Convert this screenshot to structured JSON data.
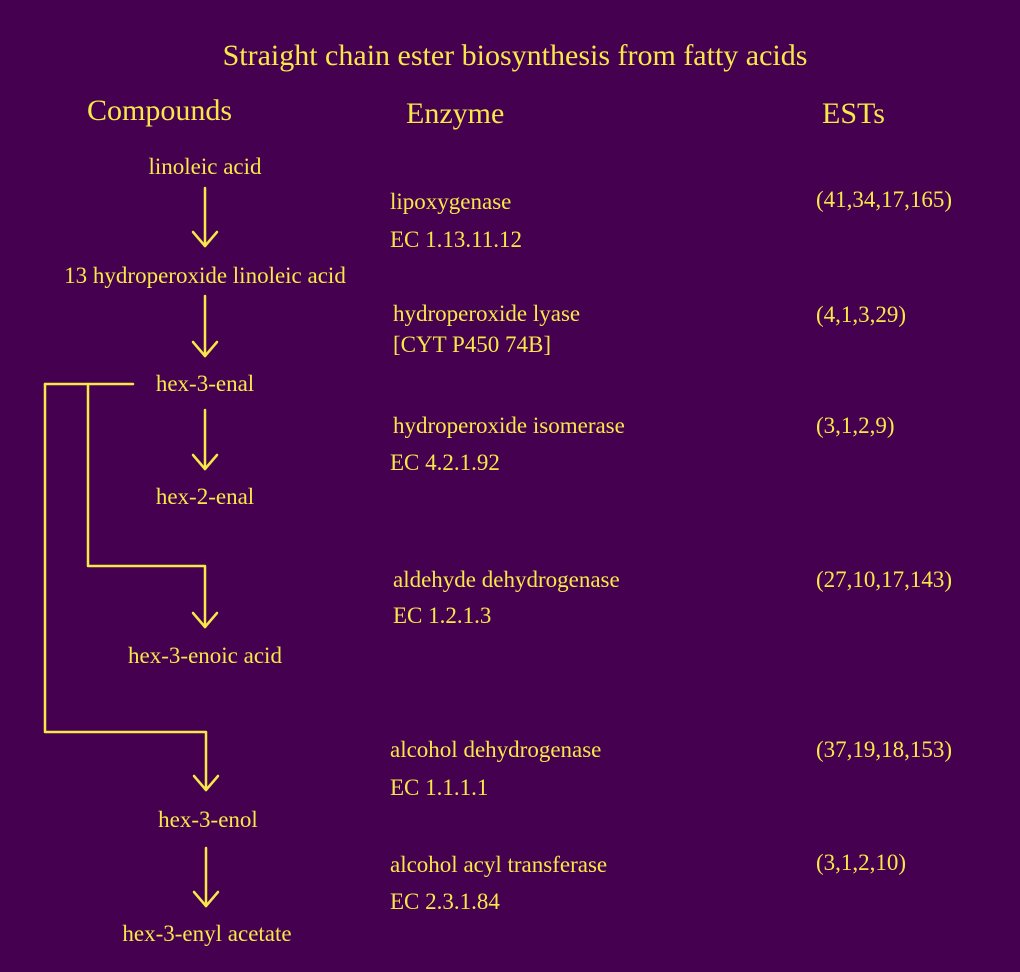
{
  "title": "Straight chain ester biosynthesis from fatty acids",
  "headers": {
    "compounds": "Compounds",
    "enzyme": "Enzyme",
    "ests": "ESTs"
  },
  "compounds": [
    "linoleic acid",
    "13 hydroperoxide linoleic acid",
    "hex-3-enal",
    "hex-2-enal",
    "hex-3-enoic acid",
    "hex-3-enol",
    "hex-3-enyl acetate"
  ],
  "enzymes": [
    {
      "name": "lipoxygenase",
      "ec": "EC 1.13.11.12",
      "ests": "(41,34,17,165)"
    },
    {
      "name": "hydroperoxide lyase",
      "ec": "[CYT P450 74B]",
      "ests": "(4,1,3,29)"
    },
    {
      "name": "hydroperoxide isomerase",
      "ec": "EC 4.2.1.92",
      "ests": "(3,1,2,9)"
    },
    {
      "name": "aldehyde dehydrogenase",
      "ec": "EC 1.2.1.3",
      "ests": "(27,10,17,143)"
    },
    {
      "name": "alcohol dehydrogenase",
      "ec": "EC 1.1.1.1",
      "ests": "(37,19,18,153)"
    },
    {
      "name": "alcohol acyl transferase",
      "ec": "EC 2.3.1.84",
      "ests": "(3,1,2,10)"
    }
  ],
  "colors": {
    "background": "#460050",
    "text": "#f7e84a",
    "lines": "#f7e84a"
  }
}
